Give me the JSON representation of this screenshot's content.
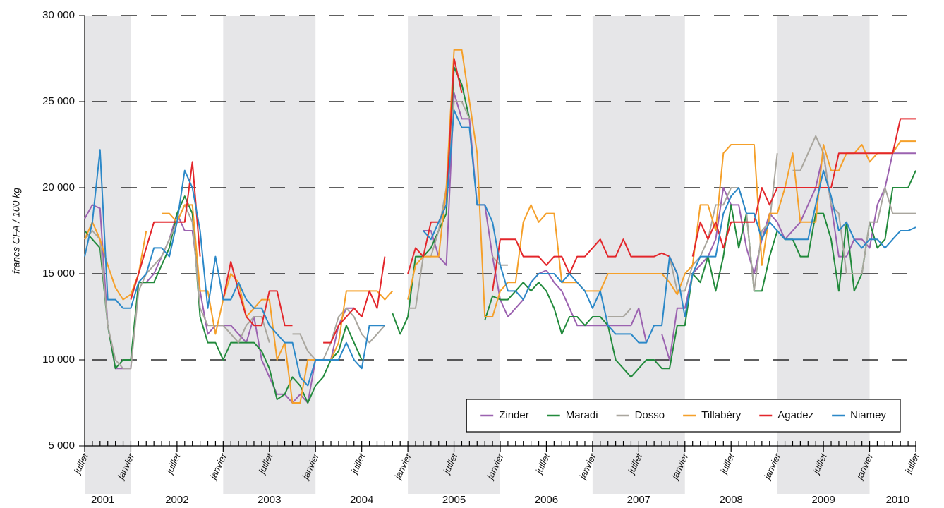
{
  "chart_data": {
    "type": "line",
    "y_label": "francs CFA / 100 kg",
    "x": [
      "2001-07",
      "2001-08",
      "2001-09",
      "2001-10",
      "2001-11",
      "2001-12",
      "2002-01",
      "2002-02",
      "2002-03",
      "2002-04",
      "2002-05",
      "2002-06",
      "2002-07",
      "2002-08",
      "2002-09",
      "2002-10",
      "2002-11",
      "2002-12",
      "2003-01",
      "2003-02",
      "2003-03",
      "2003-04",
      "2003-05",
      "2003-06",
      "2003-07",
      "2003-08",
      "2003-09",
      "2003-10",
      "2003-11",
      "2003-12",
      "2004-01",
      "2004-02",
      "2004-03",
      "2004-04",
      "2004-05",
      "2004-06",
      "2004-07",
      "2004-08",
      "2004-09",
      "2004-10",
      "2004-11",
      "2004-12",
      "2005-01",
      "2005-02",
      "2005-03",
      "2005-04",
      "2005-05",
      "2005-06",
      "2005-07",
      "2005-08",
      "2005-09",
      "2005-10",
      "2005-11",
      "2005-12",
      "2006-01",
      "2006-02",
      "2006-03",
      "2006-04",
      "2006-05",
      "2006-06",
      "2006-07",
      "2006-08",
      "2006-09",
      "2006-10",
      "2006-11",
      "2006-12",
      "2007-01",
      "2007-02",
      "2007-03",
      "2007-04",
      "2007-05",
      "2007-06",
      "2007-07",
      "2007-08",
      "2007-09",
      "2007-10",
      "2007-11",
      "2007-12",
      "2008-01",
      "2008-02",
      "2008-03",
      "2008-04",
      "2008-05",
      "2008-06",
      "2008-07",
      "2008-08",
      "2008-09",
      "2008-10",
      "2008-11",
      "2008-12",
      "2009-01",
      "2009-02",
      "2009-03",
      "2009-04",
      "2009-05",
      "2009-06",
      "2009-07",
      "2009-08",
      "2009-09",
      "2009-10",
      "2009-11",
      "2009-12",
      "2010-01",
      "2010-02",
      "2010-03",
      "2010-04",
      "2010-05",
      "2010-06",
      "2010-07"
    ],
    "xlim": [
      "2001-07",
      "2010-07"
    ],
    "xticks": [
      {
        "value": "2001-07",
        "label": "juillet"
      },
      {
        "value": "2002-01",
        "label": "janvier"
      },
      {
        "value": "2002-07",
        "label": "juillet"
      },
      {
        "value": "2003-01",
        "label": "janvier"
      },
      {
        "value": "2003-07",
        "label": "juillet"
      },
      {
        "value": "2004-01",
        "label": "janvier"
      },
      {
        "value": "2004-07",
        "label": "juillet"
      },
      {
        "value": "2005-01",
        "label": "janvier"
      },
      {
        "value": "2005-07",
        "label": "juillet"
      },
      {
        "value": "2006-01",
        "label": "janvier"
      },
      {
        "value": "2006-07",
        "label": "juillet"
      },
      {
        "value": "2007-01",
        "label": "janvier"
      },
      {
        "value": "2007-07",
        "label": "juillet"
      },
      {
        "value": "2008-01",
        "label": "janvier"
      },
      {
        "value": "2008-07",
        "label": "juillet"
      },
      {
        "value": "2009-01",
        "label": "janvier"
      },
      {
        "value": "2009-07",
        "label": "juillet"
      },
      {
        "value": "2010-01",
        "label": "janvier"
      },
      {
        "value": "2010-07",
        "label": "juillet"
      }
    ],
    "year_labels": [
      "2001",
      "2002",
      "2003",
      "2004",
      "2005",
      "2006",
      "2007",
      "2008",
      "2009",
      "2010"
    ],
    "ylim": [
      5000,
      30000
    ],
    "yticks": [
      {
        "value": 5000,
        "label": "5 000"
      },
      {
        "value": 10000,
        "label": "10 000"
      },
      {
        "value": 15000,
        "label": "15 000"
      },
      {
        "value": 20000,
        "label": "20 000"
      },
      {
        "value": 25000,
        "label": "25 000"
      },
      {
        "value": 30000,
        "label": "30 000"
      }
    ],
    "grid": true,
    "legend": "lower right",
    "series": [
      {
        "name": "Zinder",
        "color": "#9b62b0",
        "values": [
          18200,
          19000,
          18800,
          12000,
          9500,
          9500,
          9500,
          14500,
          14500,
          15000,
          16000,
          17000,
          18500,
          17500,
          17500,
          14000,
          11500,
          12000,
          12000,
          12000,
          11500,
          11000,
          12500,
          10000,
          9000,
          8000,
          8000,
          7500,
          8000,
          7500,
          10000,
          10000,
          10000,
          12000,
          13000,
          13000,
          12500,
          null,
          null,
          null,
          null,
          null,
          null,
          null,
          17500,
          17500,
          16000,
          15500,
          25500,
          24000,
          24000,
          19000,
          19000,
          16000,
          13500,
          12500,
          13000,
          13500,
          14500,
          15000,
          15200,
          14500,
          14000,
          13000,
          12000,
          12000,
          12000,
          12000,
          12000,
          12000,
          12000,
          12000,
          13000,
          11000,
          null,
          11500,
          10000,
          13000,
          13000,
          15000,
          15500,
          16000,
          17000,
          20000,
          19000,
          19000,
          16500,
          15000,
          17000,
          18500,
          18000,
          17000,
          17500,
          18000,
          19000,
          20000,
          22000,
          19000,
          16000,
          16000,
          17000,
          17000,
          16500,
          19000,
          20000,
          22000,
          22000,
          22000,
          22000
        ]
      },
      {
        "name": "Maradi",
        "color": "#228a3c",
        "values": [
          17500,
          17000,
          16500,
          12000,
          9500,
          10000,
          10000,
          14500,
          14500,
          14500,
          15500,
          16500,
          18500,
          19500,
          18500,
          12500,
          11000,
          11000,
          10000,
          11000,
          11000,
          11000,
          11000,
          10500,
          9500,
          7700,
          8000,
          9000,
          8500,
          7500,
          8500,
          9000,
          10000,
          10500,
          12000,
          11000,
          10000,
          null,
          null,
          null,
          12700,
          11500,
          12500,
          16000,
          16000,
          16500,
          17500,
          18500,
          27000,
          26000,
          24000,
          null,
          12300,
          13700,
          13500,
          13500,
          14000,
          14500,
          14000,
          14500,
          14000,
          13000,
          11500,
          12500,
          12500,
          12000,
          12500,
          12500,
          12000,
          10000,
          9500,
          9000,
          9500,
          10000,
          10000,
          9500,
          9500,
          12000,
          12000,
          15000,
          14500,
          16000,
          14000,
          16000,
          19000,
          16500,
          18500,
          14000,
          14000,
          16000,
          17500,
          17000,
          17000,
          16000,
          16000,
          18500,
          18500,
          17000,
          14000,
          18000,
          14000,
          15000,
          18000,
          16500,
          17000,
          20000,
          20000,
          20000,
          21000
        ]
      },
      {
        "name": "Dosso",
        "color": "#a9a69e",
        "values": [
          17000,
          17500,
          17000,
          12000,
          10000,
          9500,
          9500,
          14000,
          15000,
          15500,
          16000,
          17000,
          18000,
          19000,
          18000,
          13000,
          12000,
          12000,
          12000,
          11500,
          11000,
          12000,
          12500,
          12500,
          11000,
          null,
          null,
          11500,
          11500,
          10500,
          10000,
          10000,
          11000,
          12500,
          13000,
          12500,
          11500,
          11000,
          11500,
          12000,
          null,
          null,
          13000,
          13000,
          16000,
          16000,
          17500,
          20000,
          25000,
          25000,
          24000,
          null,
          null,
          16000,
          15500,
          15500,
          null,
          null,
          null,
          null,
          null,
          null,
          null,
          null,
          null,
          null,
          null,
          null,
          12500,
          12500,
          12500,
          13000,
          null,
          null,
          null,
          null,
          16000,
          14000,
          14000,
          15500,
          16000,
          17000,
          19000,
          19000,
          20000,
          20000,
          18500,
          14000,
          17500,
          18000,
          22000,
          null,
          21000,
          21000,
          22000,
          23000,
          22000,
          19000,
          18500,
          15000,
          15000,
          15000,
          18000,
          18000,
          20000,
          18500,
          18500,
          18500,
          18500
        ]
      },
      {
        "name": "Tillabéry",
        "color": "#f5a02a",
        "values": [
          17000,
          18000,
          17000,
          15500,
          14200,
          13500,
          13800,
          15000,
          17500,
          null,
          18500,
          18500,
          18000,
          19000,
          19000,
          14000,
          14000,
          11500,
          13500,
          15000,
          14500,
          12500,
          13000,
          13500,
          13500,
          10000,
          11000,
          7500,
          7500,
          10000,
          10000,
          10000,
          10000,
          11000,
          14000,
          14000,
          14000,
          14000,
          14000,
          13500,
          14000,
          null,
          13500,
          15500,
          16000,
          16000,
          16000,
          20000,
          28000,
          28000,
          25000,
          22000,
          12500,
          12500,
          14000,
          14500,
          14500,
          18000,
          19000,
          18000,
          18500,
          18500,
          14500,
          14500,
          14500,
          14000,
          14000,
          14000,
          15000,
          15000,
          15000,
          15000,
          15000,
          15000,
          15000,
          15000,
          14500,
          13800,
          15000,
          15500,
          19000,
          19000,
          17500,
          22000,
          22500,
          22500,
          22500,
          22500,
          15500,
          18500,
          18500,
          20000,
          22000,
          18000,
          18000,
          18000,
          22500,
          21000,
          21000,
          22000,
          22000,
          22500,
          21500,
          22000,
          22000,
          22000,
          22700,
          22700,
          22700
        ]
      },
      {
        "name": "Agadez",
        "color": "#e3262b",
        "values": [
          null,
          null,
          null,
          null,
          null,
          null,
          13500,
          15000,
          16500,
          18000,
          18000,
          18000,
          18000,
          18000,
          21500,
          16000,
          null,
          null,
          13500,
          15700,
          14000,
          12500,
          12000,
          12000,
          14000,
          14000,
          12000,
          12000,
          null,
          null,
          null,
          11000,
          11000,
          12000,
          12500,
          13000,
          12500,
          14000,
          13000,
          16000,
          null,
          null,
          15000,
          16500,
          16000,
          18000,
          18000,
          19000,
          27500,
          25500,
          null,
          null,
          null,
          14000,
          17000,
          17000,
          17000,
          16000,
          16000,
          16000,
          15500,
          16000,
          16000,
          15000,
          16000,
          16000,
          16500,
          17000,
          16000,
          16000,
          17000,
          16000,
          16000,
          16000,
          16000,
          16200,
          16000,
          15000,
          null,
          16000,
          18000,
          17000,
          18000,
          16500,
          18000,
          18000,
          18000,
          18000,
          20000,
          19000,
          20000,
          20000,
          20000,
          20000,
          20000,
          20000,
          20000,
          20000,
          22000,
          22000,
          22000,
          22000,
          22000,
          22000,
          22000,
          22000,
          24000,
          24000,
          24000
        ]
      },
      {
        "name": "Niamey",
        "color": "#2b88c8",
        "values": [
          16000,
          18000,
          22200,
          13500,
          13500,
          13000,
          13000,
          14500,
          15000,
          16500,
          16500,
          16000,
          18000,
          21000,
          20000,
          17500,
          13000,
          16000,
          13500,
          13500,
          14500,
          13500,
          13000,
          13000,
          12000,
          11500,
          11000,
          11000,
          9000,
          8500,
          10000,
          10000,
          10000,
          10000,
          11000,
          10000,
          9500,
          12000,
          12000,
          12000,
          null,
          null,
          null,
          null,
          17500,
          17000,
          18000,
          19000,
          24500,
          23500,
          23500,
          19000,
          19000,
          18000,
          15500,
          14000,
          14000,
          13500,
          14500,
          15000,
          15000,
          15000,
          14500,
          15000,
          14500,
          14000,
          13000,
          14000,
          12000,
          11500,
          11500,
          11500,
          11000,
          11000,
          12000,
          12000,
          16000,
          15000,
          12500,
          15000,
          16000,
          16000,
          16000,
          18500,
          19500,
          20000,
          18500,
          18500,
          17000,
          18000,
          17500,
          17000,
          17000,
          17000,
          17000,
          19000,
          21000,
          19500,
          17500,
          18000,
          17000,
          16500,
          17000,
          17000,
          16500,
          17000,
          17500,
          17500,
          17700
        ]
      }
    ]
  }
}
